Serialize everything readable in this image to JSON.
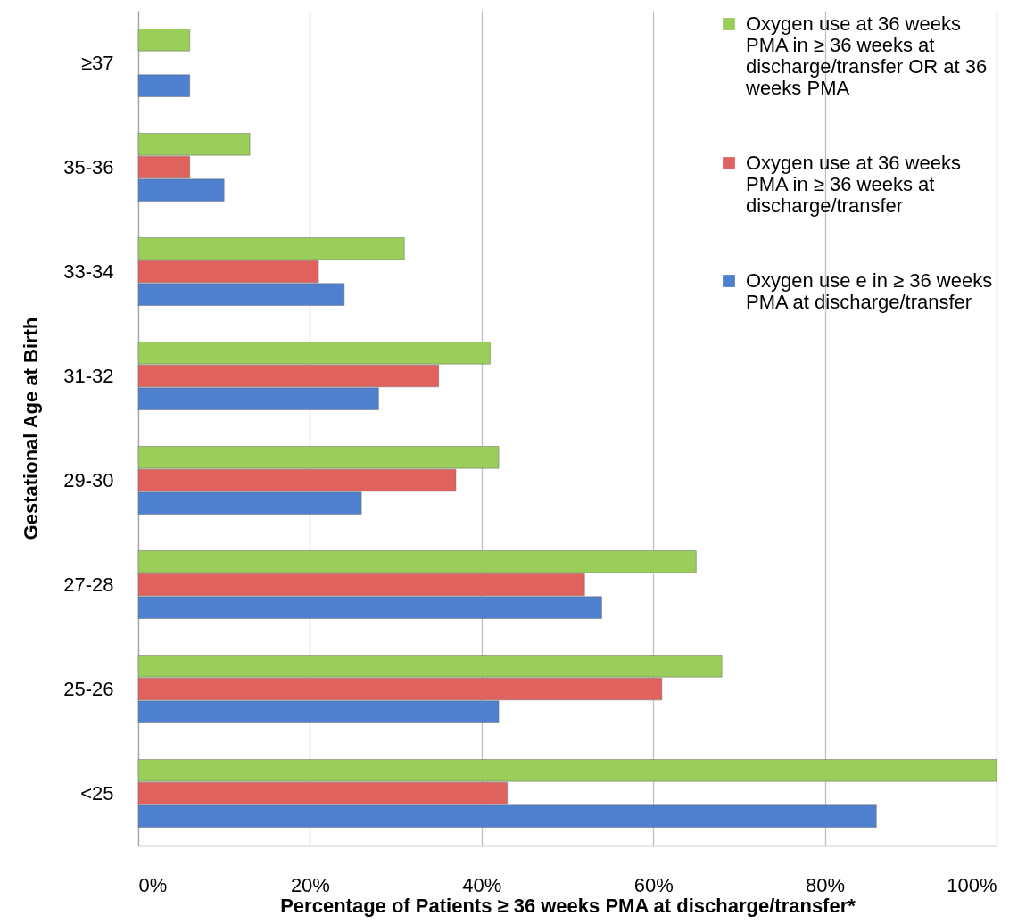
{
  "chart_data": {
    "type": "bar",
    "orientation": "horizontal",
    "xlabel": "Percentage of Patients ≥ 36 weeks PMA at discharge/transfer*",
    "ylabel": "Gestational Age at Birth",
    "categories": [
      "≥37",
      "35-36",
      "33-34",
      "31-32",
      "29-30",
      "27-28",
      "25-26",
      "<25"
    ],
    "series": [
      {
        "name": "Oxygen use at 36 weeks PMA in ≥ 36 weeks at discharge/transfer OR at 36 weeks PMA",
        "color": "#9acd5a",
        "values": [
          6,
          13,
          31,
          41,
          42,
          65,
          68,
          100
        ]
      },
      {
        "name": "Oxygen use at 36 weeks PMA in ≥ 36 weeks at discharge/transfer",
        "color": "#e0625e",
        "values": [
          null,
          6,
          21,
          35,
          37,
          52,
          61,
          43
        ]
      },
      {
        "name": "Oxygen use e in ≥ 36 weeks PMA at discharge/transfer",
        "color": "#4f80cf",
        "values": [
          6,
          10,
          24,
          28,
          26,
          54,
          42,
          86
        ]
      }
    ],
    "xlim": [
      0,
      100
    ],
    "xticks": [
      {
        "value": 0,
        "label": "0%"
      },
      {
        "value": 20,
        "label": "20%"
      },
      {
        "value": 40,
        "label": "40%"
      },
      {
        "value": 60,
        "label": "60%"
      },
      {
        "value": 80,
        "label": "80%"
      },
      {
        "value": 100,
        "label": "100%"
      }
    ],
    "grid": "x",
    "legend": "top right"
  }
}
